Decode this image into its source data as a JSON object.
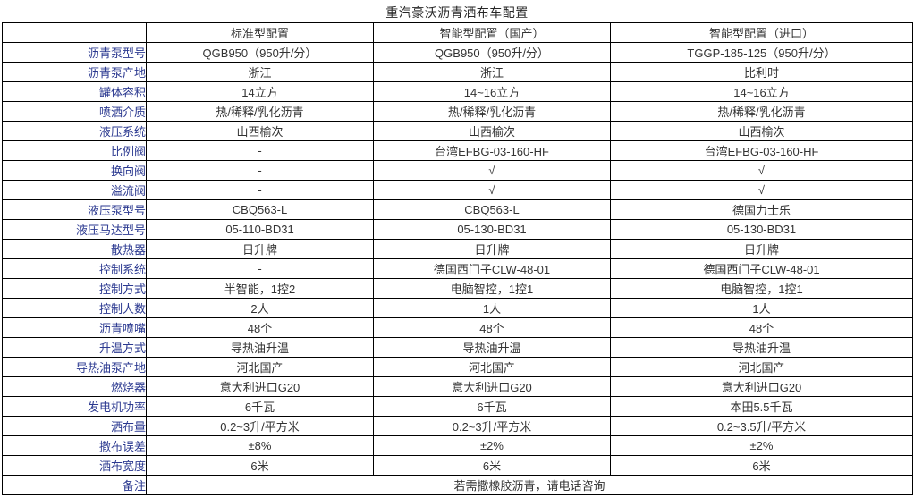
{
  "title": "重汽豪沃沥青洒布车配置",
  "colors": {
    "label_text": "#2B3990",
    "value_text": "#333333",
    "border": "#000000",
    "background": "#ffffff"
  },
  "table": {
    "header": {
      "label": "",
      "columns": [
        "标准型配置",
        "智能型配置（国产）",
        "智能型配置（进口）"
      ]
    },
    "rows": [
      {
        "label": "沥青泵型号",
        "values": [
          "QGB950（950升/分）",
          "QGB950（950升/分）",
          "TGGP-185-125（950升/分）"
        ]
      },
      {
        "label": "沥青泵产地",
        "values": [
          "浙江",
          "浙江",
          "比利时"
        ]
      },
      {
        "label": "罐体容积",
        "values": [
          "14立方",
          "14~16立方",
          "14~16立方"
        ]
      },
      {
        "label": "喷洒介质",
        "values": [
          "热/稀释/乳化沥青",
          "热/稀释/乳化沥青",
          "热/稀释/乳化沥青"
        ]
      },
      {
        "label": "液压系统",
        "values": [
          "山西榆次",
          "山西榆次",
          "山西榆次"
        ]
      },
      {
        "label": "比例阀",
        "values": [
          "-",
          "台湾EFBG-03-160-HF",
          "台湾EFBG-03-160-HF"
        ]
      },
      {
        "label": "换向阀",
        "values": [
          "-",
          "√",
          "√"
        ]
      },
      {
        "label": "溢流阀",
        "values": [
          "-",
          "√",
          "√"
        ]
      },
      {
        "label": "液压泵型号",
        "values": [
          "CBQ563-L",
          "CBQ563-L",
          "德国力士乐"
        ]
      },
      {
        "label": "液压马达型号",
        "values": [
          "05-110-BD31",
          "05-130-BD31",
          "05-130-BD31"
        ]
      },
      {
        "label": "散热器",
        "values": [
          "日升牌",
          "日升牌",
          "日升牌"
        ]
      },
      {
        "label": "控制系统",
        "values": [
          "-",
          "德国西门子CLW-48-01",
          "德国西门子CLW-48-01"
        ]
      },
      {
        "label": "控制方式",
        "values": [
          "半智能，1控2",
          "电脑智控，1控1",
          "电脑智控，1控1"
        ]
      },
      {
        "label": "控制人数",
        "values": [
          "2人",
          "1人",
          "1人"
        ]
      },
      {
        "label": "沥青喷嘴",
        "values": [
          "48个",
          "48个",
          "48个"
        ]
      },
      {
        "label": "升温方式",
        "values": [
          "导热油升温",
          "导热油升温",
          "导热油升温"
        ]
      },
      {
        "label": "导热油泵产地",
        "values": [
          "河北国产",
          "河北国产",
          "河北国产"
        ]
      },
      {
        "label": "燃烧器",
        "values": [
          "意大利进口G20",
          "意大利进口G20",
          "意大利进口G20"
        ]
      },
      {
        "label": "发电机功率",
        "values": [
          "6千瓦",
          "6千瓦",
          "本田5.5千瓦"
        ]
      },
      {
        "label": "洒布量",
        "values": [
          "0.2~3升/平方米",
          "0.2~3升/平方米",
          "0.2~3.5升/平方米"
        ]
      },
      {
        "label": "撒布误差",
        "values": [
          "±8%",
          "±2%",
          "±2%"
        ]
      },
      {
        "label": "洒布宽度",
        "values": [
          "6米",
          "6米",
          "6米"
        ]
      }
    ],
    "footer": {
      "label": "备注",
      "note": "若需撒橡胶沥青，请电话咨询"
    }
  }
}
